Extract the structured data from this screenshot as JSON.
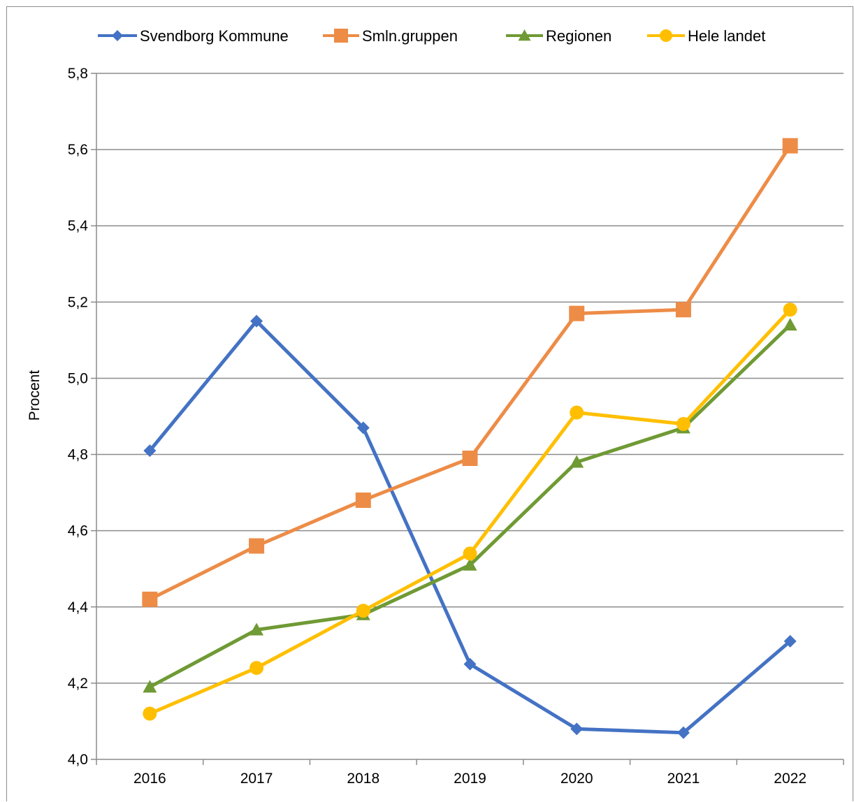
{
  "chart_data": {
    "type": "line",
    "title": "",
    "xlabel": "",
    "ylabel": "Procent",
    "categories": [
      "2016",
      "2017",
      "2018",
      "2019",
      "2020",
      "2021",
      "2022"
    ],
    "ylim": [
      4.0,
      5.8
    ],
    "yticks": [
      "4,0",
      "4,2",
      "4,4",
      "4,6",
      "4,8",
      "5,0",
      "5,2",
      "5,4",
      "5,6",
      "5,8"
    ],
    "ytick_values": [
      4.0,
      4.2,
      4.4,
      4.6,
      4.8,
      5.0,
      5.2,
      5.4,
      5.6,
      5.8
    ],
    "grid": "horizontal",
    "legend_position": "top",
    "series": [
      {
        "name": "Svendborg Kommune",
        "color": "#4472c4",
        "marker": "diamond",
        "values": [
          4.81,
          5.15,
          4.87,
          4.25,
          4.08,
          4.07,
          4.31
        ]
      },
      {
        "name": "Smln.gruppen",
        "color": "#ed8c47",
        "marker": "square",
        "values": [
          4.42,
          4.56,
          4.68,
          4.79,
          5.17,
          5.18,
          5.61
        ]
      },
      {
        "name": "Regionen",
        "color": "#6f9a34",
        "marker": "triangle",
        "values": [
          4.19,
          4.34,
          4.38,
          4.51,
          4.78,
          4.87,
          5.14
        ]
      },
      {
        "name": "Hele landet",
        "color": "#ffbf00",
        "marker": "circle",
        "values": [
          4.12,
          4.24,
          4.39,
          4.54,
          4.91,
          4.88,
          5.18
        ]
      }
    ]
  }
}
